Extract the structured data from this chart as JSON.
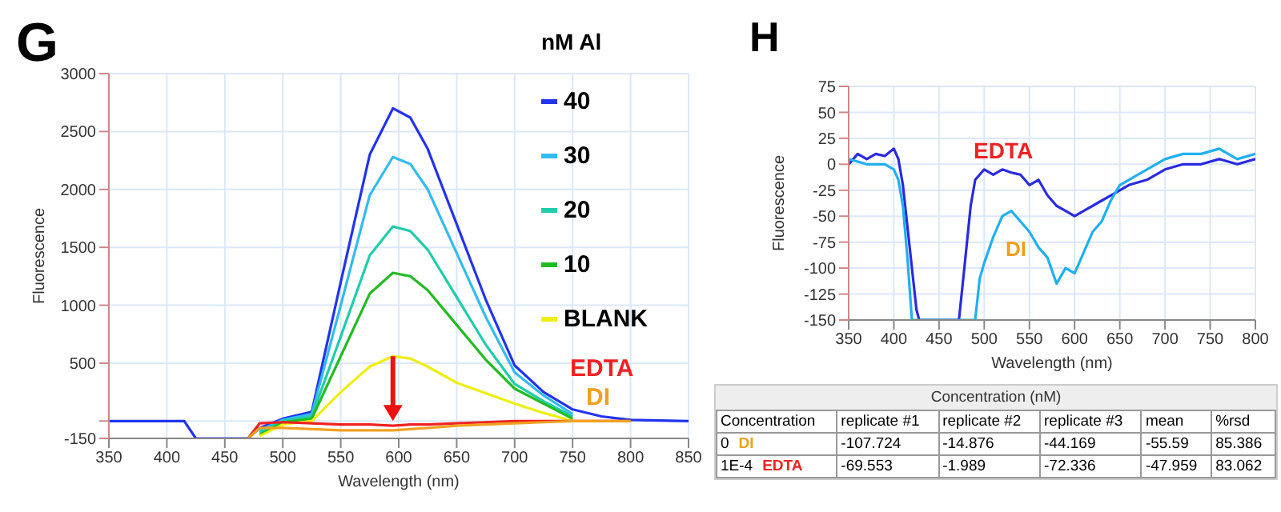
{
  "chart_data": [
    {
      "type": "line",
      "title": "G",
      "xlabel": "Wavelength (nm)",
      "ylabel": "Fluorescence",
      "legend_title": "nM Al",
      "legend": "right",
      "x": [
        350,
        375,
        400,
        415,
        425,
        470,
        480,
        500,
        525,
        550,
        575,
        595,
        610,
        625,
        650,
        675,
        700,
        725,
        750,
        775,
        800,
        850
      ],
      "series": [
        {
          "name": "40",
          "color": "#2233ee",
          "values": [
            0,
            0,
            0,
            0,
            -150,
            -150,
            -60,
            20,
            80,
            1200,
            2300,
            2700,
            2620,
            2350,
            1700,
            1050,
            480,
            250,
            100,
            40,
            10,
            0
          ]
        },
        {
          "name": "30",
          "color": "#33bbee",
          "values": [
            null,
            null,
            null,
            null,
            null,
            null,
            -80,
            10,
            60,
            1000,
            1950,
            2280,
            2220,
            2000,
            1450,
            900,
            420,
            220,
            60,
            null,
            null,
            null
          ]
        },
        {
          "name": "20",
          "color": "#22ccaa",
          "values": [
            null,
            null,
            null,
            null,
            null,
            null,
            -100,
            0,
            40,
            730,
            1430,
            1680,
            1640,
            1480,
            1070,
            660,
            320,
            170,
            40,
            null,
            null,
            null
          ]
        },
        {
          "name": "10",
          "color": "#22bb22",
          "values": [
            null,
            null,
            null,
            null,
            null,
            null,
            -120,
            -10,
            20,
            560,
            1100,
            1280,
            1250,
            1130,
            830,
            530,
            280,
            150,
            20,
            null,
            null,
            null
          ]
        },
        {
          "name": "BLANK",
          "color": "#eeee11",
          "values": [
            null,
            null,
            null,
            null,
            null,
            null,
            -130,
            -30,
            0,
            250,
            470,
            560,
            540,
            470,
            330,
            240,
            150,
            70,
            0,
            null,
            null,
            null
          ]
        },
        {
          "name": "EDTA",
          "color": "#ee2222",
          "values": [
            null,
            null,
            null,
            null,
            null,
            -150,
            -20,
            -10,
            -20,
            -30,
            -30,
            -40,
            -30,
            -30,
            -20,
            -10,
            0,
            0,
            0,
            0,
            0,
            null
          ]
        },
        {
          "name": "DI",
          "color": "#f0a020",
          "values": [
            null,
            null,
            null,
            null,
            null,
            -150,
            -60,
            -60,
            -70,
            -80,
            -80,
            -80,
            -70,
            -60,
            -40,
            -30,
            -20,
            -10,
            0,
            0,
            0,
            null
          ]
        }
      ],
      "xlim": [
        350,
        850
      ],
      "xticks": [
        350,
        400,
        450,
        500,
        550,
        600,
        650,
        700,
        750,
        800,
        850
      ],
      "ylim": [
        -150,
        3000
      ],
      "yticks": [
        -150,
        {
          "value": 0,
          "label": null
        },
        500,
        1000,
        1500,
        2000,
        2500,
        3000
      ],
      "grid": true
    },
    {
      "type": "line",
      "title": "H",
      "xlabel": "Wavelength (nm)",
      "ylabel": "Fluorescence",
      "series": [
        {
          "name": "EDTA",
          "color": "#2a2ae0",
          "x": [
            350,
            360,
            370,
            380,
            390,
            400,
            405,
            410,
            415,
            420,
            425,
            428,
            472,
            478,
            485,
            490,
            500,
            510,
            520,
            530,
            540,
            550,
            560,
            570,
            580,
            590,
            600,
            610,
            620,
            630,
            640,
            650,
            660,
            680,
            700,
            720,
            740,
            760,
            780,
            800
          ],
          "values": [
            0,
            10,
            5,
            10,
            8,
            15,
            5,
            -20,
            -60,
            -100,
            -140,
            -150,
            -150,
            -100,
            -40,
            -15,
            -5,
            -10,
            -5,
            -8,
            -10,
            -20,
            -15,
            -30,
            -40,
            -45,
            -50,
            -45,
            -40,
            -35,
            -30,
            -25,
            -20,
            -15,
            -5,
            0,
            0,
            5,
            0,
            5
          ]
        },
        {
          "name": "DI",
          "color": "#20b0f0",
          "x": [
            350,
            370,
            390,
            400,
            405,
            410,
            415,
            420,
            490,
            495,
            500,
            510,
            520,
            530,
            540,
            550,
            560,
            570,
            580,
            590,
            600,
            610,
            620,
            630,
            640,
            650,
            660,
            680,
            700,
            720,
            740,
            760,
            780,
            800
          ],
          "values": [
            5,
            0,
            0,
            -5,
            -15,
            -40,
            -90,
            -150,
            -150,
            -110,
            -95,
            -70,
            -50,
            -45,
            -55,
            -65,
            -80,
            -90,
            -115,
            -100,
            -105,
            -85,
            -65,
            -55,
            -35,
            -20,
            -15,
            -5,
            5,
            10,
            10,
            15,
            5,
            10
          ]
        }
      ],
      "xlim": [
        350,
        800
      ],
      "xticks": [
        350,
        400,
        450,
        500,
        550,
        600,
        650,
        700,
        750,
        800
      ],
      "ylim": [
        -150,
        75
      ],
      "yticks": [
        -150,
        -125,
        -100,
        -75,
        -50,
        -25,
        0,
        25,
        50,
        75
      ],
      "grid": true
    },
    {
      "type": "other",
      "title": "Concentration (nM)",
      "categories": [
        "Concentration",
        "replicate #1",
        "replicate #2",
        "replicate #3",
        "mean",
        "%rsd"
      ],
      "annotations": [
        "0",
        "-107.724",
        "-14.876",
        "-44.169",
        "-55.59",
        "85.386",
        "1E-4",
        "-69.553",
        "-1.989",
        "-72.336",
        "-47.959",
        "83.062",
        "DI",
        "EDTA"
      ]
    }
  ]
}
